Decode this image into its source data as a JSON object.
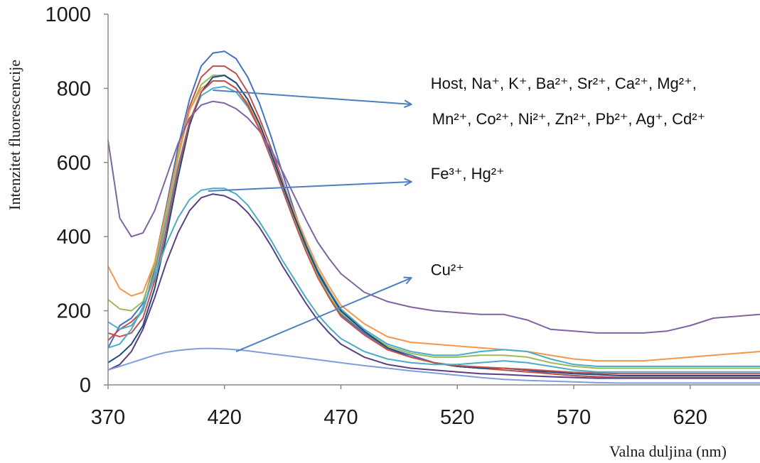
{
  "chart_data": {
    "type": "line",
    "title": "",
    "xlabel": "Valna duljina (nm)",
    "ylabel": "Intenzitet fluorescencije",
    "xlim": [
      370,
      650
    ],
    "ylim": [
      0,
      1000
    ],
    "xticks": [
      370,
      420,
      470,
      520,
      570,
      620
    ],
    "yticks": [
      0,
      200,
      400,
      600,
      800,
      1000
    ],
    "grid": false,
    "legend": "none",
    "x": [
      370,
      375,
      380,
      385,
      390,
      395,
      400,
      405,
      410,
      415,
      420,
      425,
      430,
      435,
      440,
      445,
      450,
      455,
      460,
      465,
      470,
      480,
      490,
      500,
      510,
      520,
      530,
      540,
      550,
      560,
      570,
      580,
      590,
      600,
      610,
      620,
      630,
      640,
      650
    ],
    "series": [
      {
        "color": "#4472c4",
        "values": [
          100,
          160,
          180,
          220,
          330,
          480,
          640,
          770,
          860,
          895,
          900,
          880,
          830,
          760,
          670,
          570,
          470,
          380,
          300,
          240,
          190,
          140,
          100,
          80,
          60,
          50,
          45,
          45,
          40,
          30,
          25,
          22,
          20,
          20,
          20,
          20,
          20,
          20,
          20
        ]
      },
      {
        "color": "#c0504d",
        "values": [
          120,
          150,
          170,
          200,
          310,
          460,
          620,
          750,
          830,
          860,
          860,
          840,
          790,
          720,
          640,
          550,
          455,
          370,
          295,
          235,
          185,
          135,
          95,
          75,
          60,
          50,
          45,
          40,
          35,
          30,
          25,
          22,
          20,
          20,
          20,
          20,
          20,
          20,
          20
        ]
      },
      {
        "color": "#9bbb59",
        "values": [
          230,
          205,
          200,
          225,
          320,
          460,
          610,
          740,
          810,
          835,
          835,
          815,
          770,
          700,
          620,
          535,
          445,
          365,
          295,
          240,
          195,
          145,
          105,
          85,
          75,
          75,
          80,
          80,
          75,
          60,
          50,
          45,
          45,
          45,
          45,
          45,
          45,
          45,
          45
        ]
      },
      {
        "color": "#f79646",
        "values": [
          320,
          260,
          240,
          250,
          330,
          470,
          620,
          740,
          800,
          820,
          820,
          800,
          760,
          700,
          625,
          545,
          465,
          390,
          320,
          265,
          215,
          165,
          130,
          115,
          110,
          105,
          100,
          95,
          90,
          80,
          70,
          65,
          65,
          65,
          70,
          75,
          80,
          85,
          90
        ]
      },
      {
        "color": "#4bacc6",
        "values": [
          170,
          150,
          160,
          200,
          300,
          440,
          590,
          710,
          780,
          800,
          805,
          790,
          750,
          690,
          615,
          535,
          455,
          380,
          310,
          255,
          205,
          150,
          110,
          90,
          80,
          80,
          90,
          95,
          90,
          70,
          55,
          50,
          50,
          50,
          50,
          50,
          50,
          50,
          50
        ]
      },
      {
        "color": "#1f497d",
        "values": [
          60,
          80,
          110,
          160,
          260,
          400,
          560,
          700,
          790,
          830,
          835,
          815,
          770,
          705,
          625,
          540,
          455,
          375,
          305,
          250,
          200,
          145,
          100,
          75,
          60,
          50,
          45,
          45,
          40,
          35,
          30,
          28,
          25,
          25,
          25,
          25,
          25,
          25,
          25
        ]
      },
      {
        "color": "#8064a2",
        "values": [
          660,
          450,
          400,
          410,
          470,
          560,
          650,
          720,
          755,
          765,
          760,
          745,
          720,
          685,
          635,
          575,
          510,
          445,
          385,
          340,
          300,
          250,
          225,
          210,
          200,
          195,
          190,
          190,
          175,
          150,
          145,
          140,
          140,
          140,
          145,
          160,
          180,
          185,
          190
        ]
      },
      {
        "color": "#c4504d",
        "values": [
          140,
          130,
          140,
          180,
          280,
          420,
          580,
          710,
          790,
          820,
          820,
          800,
          755,
          690,
          610,
          525,
          440,
          360,
          290,
          235,
          185,
          135,
          95,
          75,
          60,
          52,
          48,
          45,
          42,
          38,
          34,
          32,
          30,
          30,
          30,
          30,
          30,
          30,
          30
        ]
      },
      {
        "color": "#4bacc6",
        "values": [
          100,
          110,
          150,
          210,
          290,
          380,
          450,
          500,
          525,
          530,
          530,
          515,
          485,
          440,
          390,
          335,
          285,
          235,
          190,
          155,
          125,
          90,
          70,
          60,
          55,
          55,
          60,
          65,
          60,
          50,
          40,
          35,
          35,
          35,
          35,
          35,
          35,
          35,
          35
        ]
      },
      {
        "color": "#5a3f84",
        "values": [
          40,
          55,
          90,
          150,
          235,
          330,
          410,
          470,
          505,
          515,
          510,
          495,
          465,
          425,
          375,
          320,
          270,
          220,
          175,
          140,
          110,
          75,
          55,
          45,
          40,
          35,
          30,
          28,
          25,
          22,
          20,
          18,
          18,
          18,
          18,
          18,
          18,
          18,
          18
        ]
      },
      {
        "color": "#7f9fdc",
        "values": [
          40,
          50,
          60,
          70,
          80,
          88,
          93,
          96,
          98,
          98,
          97,
          95,
          92,
          88,
          84,
          80,
          76,
          72,
          68,
          64,
          60,
          52,
          45,
          38,
          32,
          26,
          20,
          15,
          12,
          10,
          8,
          6,
          5,
          5,
          5,
          5,
          5,
          5,
          5
        ]
      }
    ],
    "annotations": [
      {
        "line1": "Host, Na⁺, K⁺, Ba²⁺, Sr²⁺, Ca²⁺, Mg²⁺,",
        "line2": "Mn²⁺, Co²⁺, Ni²⁺,  Zn²⁺, Pb²⁺, Ag⁺, Cd²⁺",
        "from": [
          415,
          795
        ],
        "to": [
          500,
          757
        ]
      },
      {
        "line1": "Fe³⁺, Hg²⁺",
        "line2": "",
        "from": [
          413,
          523
        ],
        "to": [
          500,
          548
        ]
      },
      {
        "line1": "Cu²⁺",
        "line2": "",
        "from": [
          425,
          90
        ],
        "to": [
          500,
          288
        ]
      }
    ]
  }
}
